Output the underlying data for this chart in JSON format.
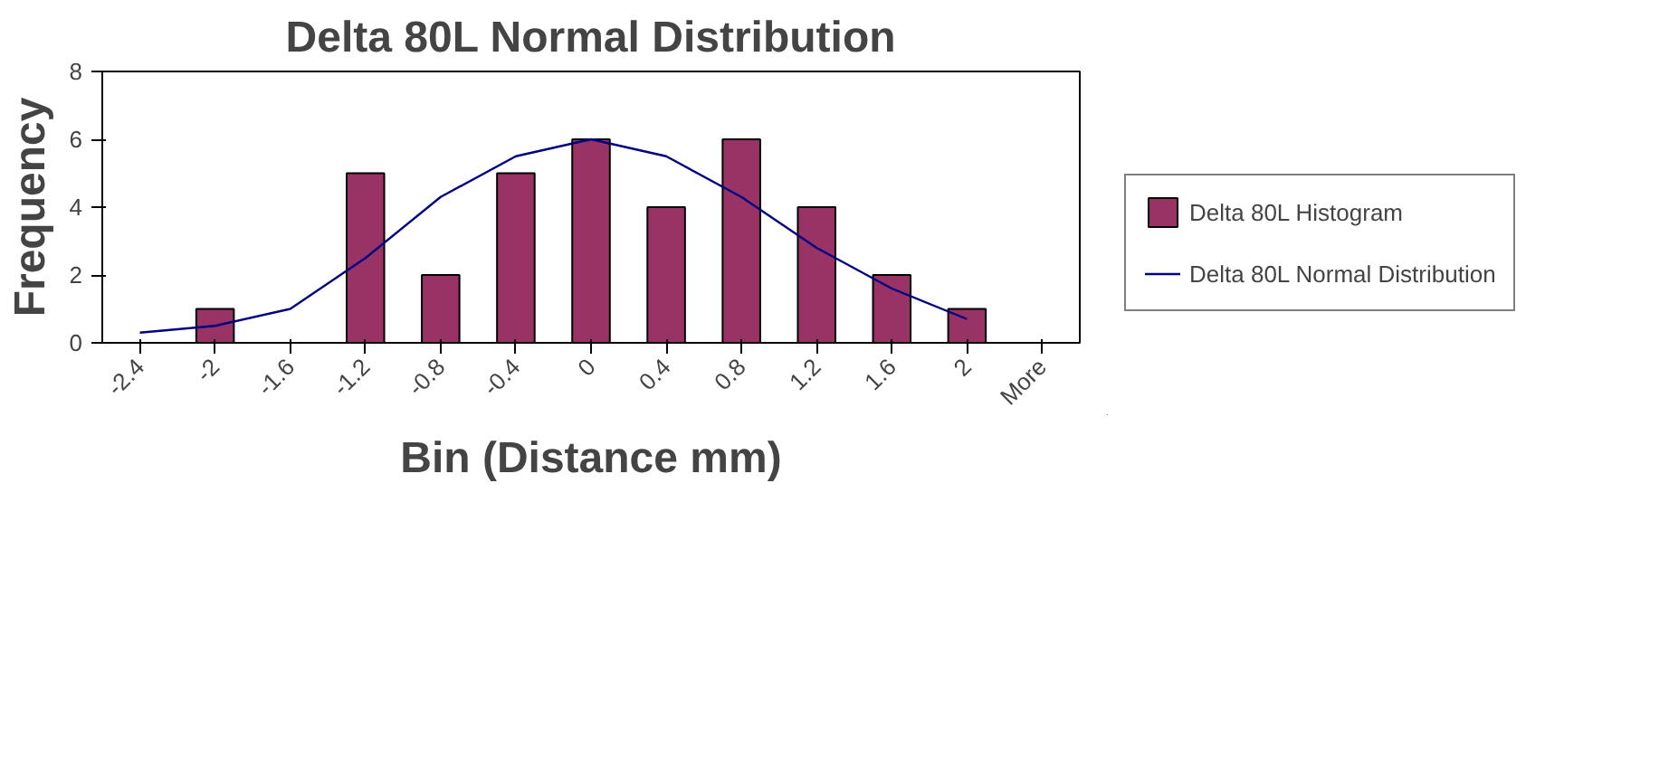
{
  "chart_data": {
    "type": "bar",
    "title": "Delta 80L Normal Distribution",
    "xlabel": "Bin (Distance mm)",
    "ylabel": "Frequency",
    "categories": [
      "-2.4",
      "-2",
      "-1.6",
      "-1.2",
      "-0.8",
      "-0.4",
      "0",
      "0.4",
      "0.8",
      "1.2",
      "1.6",
      "2",
      "More"
    ],
    "series": [
      {
        "name": "Delta 80L Histogram",
        "color": "#993366",
        "values": [
          0,
          1,
          0,
          5,
          2,
          5,
          6,
          4,
          6,
          4,
          2,
          1,
          0
        ]
      },
      {
        "name": "Delta 80L Normal Distribution",
        "type": "line",
        "color": "#000080",
        "values": [
          0.3,
          0.5,
          1.0,
          2.5,
          4.3,
          5.5,
          6.0,
          5.5,
          4.3,
          2.8,
          1.6,
          0.7,
          null
        ]
      }
    ],
    "ylim": [
      0,
      8
    ],
    "yticks": [
      0,
      2,
      4,
      6,
      8
    ],
    "grid": false,
    "legend": "right"
  }
}
